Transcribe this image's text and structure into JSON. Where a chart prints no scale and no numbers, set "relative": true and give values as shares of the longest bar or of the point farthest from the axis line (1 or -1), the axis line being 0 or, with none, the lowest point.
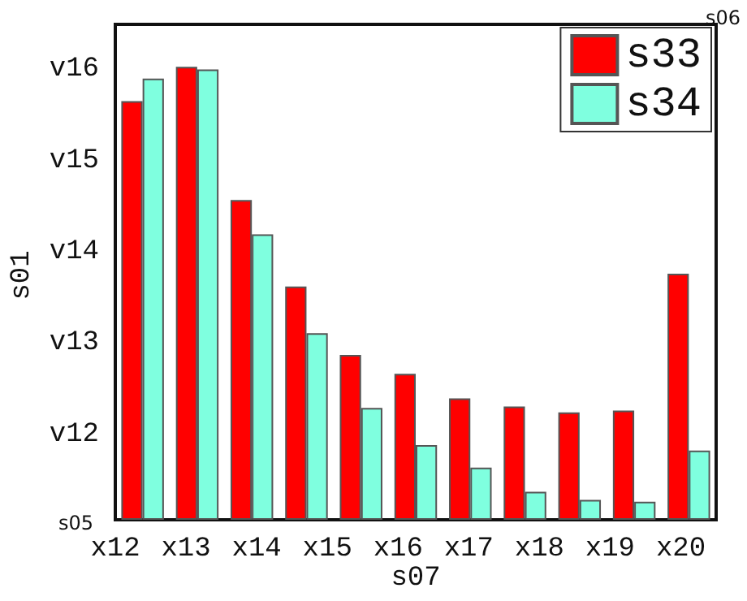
{
  "chart_data": {
    "type": "bar",
    "xlabel": "s07",
    "ylabel": "s01",
    "relative": true,
    "categories": [
      null,
      null,
      null,
      null,
      null,
      null,
      null,
      null,
      null,
      null,
      null
    ],
    "series": [
      {
        "name": "s33",
        "color": "#ff0000",
        "values": [
          0.924,
          1.0,
          0.706,
          0.515,
          0.364,
          0.322,
          0.268,
          0.25,
          0.237,
          0.241,
          0.543
        ]
      },
      {
        "name": "s34",
        "color": "#7fffdf",
        "values": [
          0.974,
          0.994,
          0.63,
          0.412,
          0.247,
          0.165,
          0.115,
          0.062,
          0.044,
          0.04,
          0.153
        ]
      }
    ],
    "annotations": [
      "x12",
      "x13",
      "x14",
      "x15",
      "x16",
      "x17",
      "x18",
      "x19",
      "x20",
      "v12",
      "v13",
      "v14",
      "v15",
      "v16",
      "s05",
      "s06"
    ],
    "legend": "top right",
    "grid": false
  }
}
